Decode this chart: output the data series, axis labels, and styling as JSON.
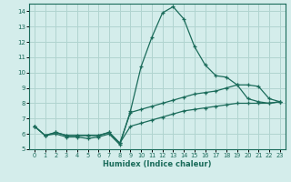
{
  "xlabel": "Humidex (Indice chaleur)",
  "x_values": [
    0,
    1,
    2,
    3,
    4,
    5,
    6,
    7,
    8,
    9,
    10,
    11,
    12,
    13,
    14,
    15,
    16,
    17,
    18,
    19,
    20,
    21,
    22,
    23
  ],
  "line1": [
    6.5,
    5.9,
    6.0,
    5.8,
    5.8,
    5.7,
    5.8,
    6.0,
    5.3,
    7.5,
    10.4,
    12.3,
    13.9,
    14.3,
    13.5,
    11.7,
    10.5,
    9.8,
    9.7,
    9.2,
    8.3,
    8.1,
    8.0,
    8.1
  ],
  "line2": [
    6.5,
    5.9,
    6.1,
    5.9,
    5.9,
    5.9,
    5.9,
    6.1,
    5.4,
    7.4,
    7.6,
    7.8,
    8.0,
    8.2,
    8.4,
    8.6,
    8.7,
    8.8,
    9.0,
    9.2,
    9.2,
    9.1,
    8.3,
    8.1
  ],
  "line3": [
    6.5,
    5.9,
    6.1,
    5.9,
    5.9,
    5.9,
    5.9,
    6.1,
    5.4,
    6.5,
    6.7,
    6.9,
    7.1,
    7.3,
    7.5,
    7.6,
    7.7,
    7.8,
    7.9,
    8.0,
    8.0,
    8.0,
    8.0,
    8.1
  ],
  "line_color": "#1a6b5a",
  "bg_color": "#d4edeb",
  "grid_color": "#b0d4d0",
  "ylim": [
    5,
    14.5
  ],
  "xlim": [
    -0.5,
    23.5
  ],
  "yticks": [
    5,
    6,
    7,
    8,
    9,
    10,
    11,
    12,
    13,
    14
  ],
  "xticks": [
    0,
    1,
    2,
    3,
    4,
    5,
    6,
    7,
    8,
    9,
    10,
    11,
    12,
    13,
    14,
    15,
    16,
    17,
    18,
    19,
    20,
    21,
    22,
    23
  ]
}
